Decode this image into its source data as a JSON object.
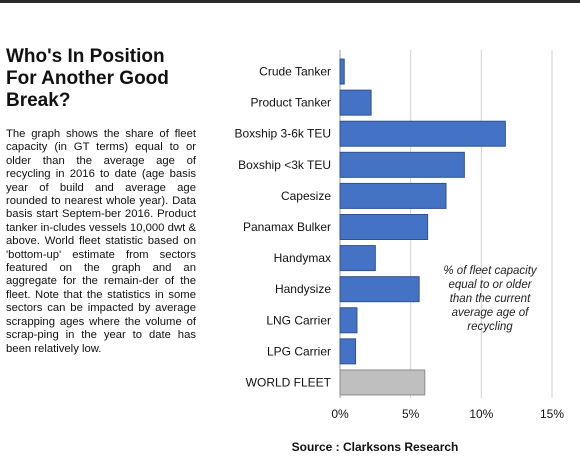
{
  "heading": "Who's In Position\nFor Another Good\nBreak?",
  "description": "The graph shows the share of fleet capacity (in GT terms) equal to or older than the average age of recycling in 2016 to date (age basis year of build and average age rounded to nearest whole year). Data basis start Septem-ber 2016. Product tanker in-cludes vessels 10,000 dwt & above. World fleet statistic based on 'bottom-up' estimate from sectors featured on the graph and an aggregate for the remain-der of the fleet. Note that the statistics in some sectors can be impacted by average scrapping ages where the volume of scrap-ping in the year to date has been relatively low.",
  "source": "Source : Clarksons Research",
  "chart_data": {
    "type": "bar",
    "orientation": "horizontal",
    "categories": [
      "Crude Tanker",
      "Product Tanker",
      "Boxship 3-6k TEU",
      "Boxship <3k TEU",
      "Capesize",
      "Panamax Bulker",
      "Handymax",
      "Handysize",
      "LNG Carrier",
      "LPG Carrier",
      "WORLD FLEET"
    ],
    "values": [
      0.3,
      2.2,
      11.7,
      8.8,
      7.5,
      6.2,
      2.5,
      5.6,
      1.2,
      1.1,
      6.0
    ],
    "xlim": [
      0,
      15
    ],
    "xticks": [
      "0%",
      "5%",
      "10%",
      "15%"
    ],
    "xtick_values": [
      0,
      5,
      10,
      15
    ],
    "annotation": [
      "% of fleet capacity",
      "equal to or older",
      "than the current",
      "average age of",
      "recycling"
    ],
    "colors": {
      "bar": "#4472c4",
      "bar_edge": "#2f528f",
      "world_fleet": "#bfbfbf",
      "world_fleet_edge": "#8c8c8c",
      "grid": "#d0d0d0"
    },
    "grid": true
  }
}
